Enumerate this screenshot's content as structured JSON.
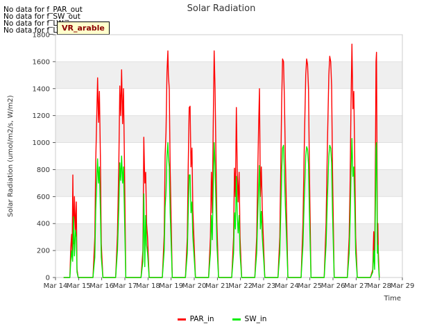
{
  "notes": [
    "No data for f_PAR_out",
    "No data for f_SW_out",
    "No data for f_LW_in",
    "No data for f_LW_out"
  ],
  "badge": "VR_arable",
  "chart_data": {
    "type": "line",
    "title": "Solar Radiation",
    "xlabel": "Time",
    "ylabel": "Solar Radiation (umol/m2/s, W/m2)",
    "xlim": [
      "Mar 14",
      "Mar 29"
    ],
    "ylim": [
      0,
      1800
    ],
    "x_ticks": [
      "Mar 14",
      "Mar 15",
      "Mar 16",
      "Mar 17",
      "Mar 18",
      "Mar 19",
      "Mar 20",
      "Mar 21",
      "Mar 22",
      "Mar 23",
      "Mar 24",
      "Mar 25",
      "Mar 26",
      "Mar 27",
      "Mar 28",
      "Mar 29"
    ],
    "y_ticks": [
      0,
      200,
      400,
      600,
      800,
      1000,
      1200,
      1400,
      1600,
      1800
    ],
    "grid": true,
    "background_bands": true,
    "legend_position": "bottom",
    "series": [
      {
        "name": "PAR_in",
        "color": "#ff0000",
        "points": [
          [
            14.35,
            0
          ],
          [
            14.62,
            0
          ],
          [
            14.66,
            220
          ],
          [
            14.7,
            320
          ],
          [
            14.72,
            180
          ],
          [
            14.75,
            760
          ],
          [
            14.78,
            250
          ],
          [
            14.82,
            600
          ],
          [
            14.86,
            330
          ],
          [
            14.9,
            560
          ],
          [
            14.93,
            60
          ],
          [
            14.98,
            0
          ],
          [
            15.62,
            0
          ],
          [
            15.7,
            300
          ],
          [
            15.74,
            860
          ],
          [
            15.78,
            1160
          ],
          [
            15.82,
            1480
          ],
          [
            15.86,
            1150
          ],
          [
            15.9,
            1380
          ],
          [
            15.94,
            900
          ],
          [
            15.98,
            250
          ],
          [
            16.05,
            0
          ],
          [
            16.6,
            0
          ],
          [
            16.68,
            320
          ],
          [
            16.74,
            850
          ],
          [
            16.78,
            1420
          ],
          [
            16.82,
            1200
          ],
          [
            16.86,
            1540
          ],
          [
            16.9,
            1140
          ],
          [
            16.94,
            1400
          ],
          [
            16.98,
            900
          ],
          [
            17.04,
            0
          ],
          [
            17.7,
            0
          ],
          [
            17.78,
            200
          ],
          [
            17.82,
            1040
          ],
          [
            17.86,
            700
          ],
          [
            17.9,
            780
          ],
          [
            17.94,
            400
          ],
          [
            17.98,
            300
          ],
          [
            18.05,
            0
          ],
          [
            18.62,
            0
          ],
          [
            18.7,
            320
          ],
          [
            18.74,
            900
          ],
          [
            18.78,
            1080
          ],
          [
            18.82,
            1520
          ],
          [
            18.86,
            1680
          ],
          [
            18.88,
            1500
          ],
          [
            18.92,
            1400
          ],
          [
            18.96,
            800
          ],
          [
            19.05,
            0
          ],
          [
            19.62,
            0
          ],
          [
            19.7,
            300
          ],
          [
            19.74,
            820
          ],
          [
            19.78,
            1260
          ],
          [
            19.82,
            1270
          ],
          [
            19.86,
            820
          ],
          [
            19.9,
            960
          ],
          [
            19.94,
            500
          ],
          [
            20.05,
            0
          ],
          [
            20.62,
            0
          ],
          [
            20.7,
            300
          ],
          [
            20.74,
            780
          ],
          [
            20.78,
            480
          ],
          [
            20.82,
            1100
          ],
          [
            20.86,
            1680
          ],
          [
            20.9,
            1400
          ],
          [
            20.94,
            900
          ],
          [
            20.98,
            400
          ],
          [
            21.05,
            0
          ],
          [
            21.62,
            0
          ],
          [
            21.7,
            300
          ],
          [
            21.74,
            810
          ],
          [
            21.78,
            600
          ],
          [
            21.82,
            1260
          ],
          [
            21.86,
            780
          ],
          [
            21.9,
            560
          ],
          [
            21.94,
            780
          ],
          [
            21.98,
            300
          ],
          [
            22.05,
            0
          ],
          [
            22.62,
            0
          ],
          [
            22.7,
            300
          ],
          [
            22.74,
            700
          ],
          [
            22.78,
            1100
          ],
          [
            22.82,
            1400
          ],
          [
            22.86,
            600
          ],
          [
            22.9,
            820
          ],
          [
            22.94,
            520
          ],
          [
            22.98,
            330
          ],
          [
            23.05,
            0
          ],
          [
            23.62,
            0
          ],
          [
            23.7,
            300
          ],
          [
            23.74,
            800
          ],
          [
            23.78,
            1300
          ],
          [
            23.82,
            1620
          ],
          [
            23.86,
            1600
          ],
          [
            23.9,
            1310
          ],
          [
            23.94,
            900
          ],
          [
            24.05,
            0
          ],
          [
            24.62,
            0
          ],
          [
            24.7,
            400
          ],
          [
            24.76,
            1000
          ],
          [
            24.82,
            1500
          ],
          [
            24.86,
            1620
          ],
          [
            24.9,
            1580
          ],
          [
            24.94,
            1400
          ],
          [
            24.98,
            800
          ],
          [
            25.05,
            0
          ],
          [
            25.62,
            0
          ],
          [
            25.7,
            400
          ],
          [
            25.76,
            1000
          ],
          [
            25.82,
            1500
          ],
          [
            25.86,
            1640
          ],
          [
            25.9,
            1600
          ],
          [
            25.94,
            1420
          ],
          [
            25.98,
            800
          ],
          [
            26.05,
            0
          ],
          [
            26.62,
            0
          ],
          [
            26.7,
            300
          ],
          [
            26.74,
            720
          ],
          [
            26.78,
            1300
          ],
          [
            26.82,
            1730
          ],
          [
            26.86,
            1250
          ],
          [
            26.9,
            1380
          ],
          [
            26.94,
            900
          ],
          [
            26.98,
            300
          ],
          [
            27.05,
            0
          ],
          [
            27.62,
            0
          ],
          [
            27.72,
            60
          ],
          [
            27.76,
            340
          ],
          [
            27.8,
            100
          ],
          [
            27.84,
            1000
          ],
          [
            27.86,
            1600
          ],
          [
            27.88,
            1670
          ],
          [
            27.92,
            300
          ],
          [
            27.94,
            400
          ],
          [
            27.96,
            200
          ],
          [
            28.0,
            0
          ]
        ]
      },
      {
        "name": "SW_in",
        "color": "#00ee00",
        "points": [
          [
            14.35,
            0
          ],
          [
            14.62,
            0
          ],
          [
            14.66,
            120
          ],
          [
            14.7,
            200
          ],
          [
            14.74,
            120
          ],
          [
            14.78,
            450
          ],
          [
            14.82,
            160
          ],
          [
            14.86,
            350
          ],
          [
            14.9,
            300
          ],
          [
            14.93,
            40
          ],
          [
            14.98,
            0
          ],
          [
            15.62,
            0
          ],
          [
            15.7,
            150
          ],
          [
            15.74,
            500
          ],
          [
            15.78,
            700
          ],
          [
            15.82,
            880
          ],
          [
            15.86,
            700
          ],
          [
            15.9,
            820
          ],
          [
            15.94,
            500
          ],
          [
            15.98,
            150
          ],
          [
            16.05,
            0
          ],
          [
            16.6,
            0
          ],
          [
            16.68,
            200
          ],
          [
            16.74,
            520
          ],
          [
            16.78,
            850
          ],
          [
            16.82,
            720
          ],
          [
            16.86,
            900
          ],
          [
            16.9,
            700
          ],
          [
            16.94,
            820
          ],
          [
            16.98,
            500
          ],
          [
            17.04,
            0
          ],
          [
            17.7,
            0
          ],
          [
            17.78,
            120
          ],
          [
            17.82,
            620
          ],
          [
            17.86,
            80
          ],
          [
            17.9,
            460
          ],
          [
            17.94,
            240
          ],
          [
            17.98,
            180
          ],
          [
            18.05,
            0
          ],
          [
            18.62,
            0
          ],
          [
            18.7,
            200
          ],
          [
            18.74,
            520
          ],
          [
            18.78,
            640
          ],
          [
            18.82,
            900
          ],
          [
            18.86,
            1000
          ],
          [
            18.88,
            900
          ],
          [
            18.92,
            820
          ],
          [
            18.96,
            480
          ],
          [
            19.05,
            0
          ],
          [
            19.62,
            0
          ],
          [
            19.7,
            180
          ],
          [
            19.74,
            480
          ],
          [
            19.78,
            760
          ],
          [
            19.82,
            760
          ],
          [
            19.86,
            480
          ],
          [
            19.9,
            560
          ],
          [
            19.94,
            300
          ],
          [
            20.05,
            0
          ],
          [
            20.62,
            0
          ],
          [
            20.7,
            180
          ],
          [
            20.74,
            460
          ],
          [
            20.78,
            280
          ],
          [
            20.82,
            660
          ],
          [
            20.86,
            1000
          ],
          [
            20.9,
            830
          ],
          [
            20.94,
            540
          ],
          [
            20.98,
            240
          ],
          [
            21.05,
            0
          ],
          [
            21.62,
            0
          ],
          [
            21.7,
            180
          ],
          [
            21.74,
            480
          ],
          [
            21.78,
            360
          ],
          [
            21.82,
            750
          ],
          [
            21.86,
            460
          ],
          [
            21.9,
            330
          ],
          [
            21.94,
            460
          ],
          [
            21.98,
            180
          ],
          [
            22.05,
            0
          ],
          [
            22.62,
            0
          ],
          [
            22.7,
            180
          ],
          [
            22.74,
            420
          ],
          [
            22.78,
            650
          ],
          [
            22.82,
            830
          ],
          [
            22.86,
            360
          ],
          [
            22.9,
            490
          ],
          [
            22.94,
            310
          ],
          [
            22.98,
            200
          ],
          [
            23.05,
            0
          ],
          [
            23.62,
            0
          ],
          [
            23.7,
            180
          ],
          [
            23.74,
            480
          ],
          [
            23.78,
            780
          ],
          [
            23.82,
            960
          ],
          [
            23.86,
            980
          ],
          [
            23.9,
            780
          ],
          [
            23.94,
            540
          ],
          [
            24.05,
            0
          ],
          [
            24.62,
            0
          ],
          [
            24.7,
            240
          ],
          [
            24.76,
            600
          ],
          [
            24.82,
            900
          ],
          [
            24.86,
            970
          ],
          [
            24.9,
            950
          ],
          [
            24.94,
            840
          ],
          [
            24.98,
            480
          ],
          [
            25.05,
            0
          ],
          [
            25.62,
            0
          ],
          [
            25.7,
            240
          ],
          [
            25.76,
            600
          ],
          [
            25.82,
            900
          ],
          [
            25.86,
            980
          ],
          [
            25.9,
            960
          ],
          [
            25.94,
            850
          ],
          [
            25.98,
            480
          ],
          [
            26.05,
            0
          ],
          [
            26.62,
            0
          ],
          [
            26.7,
            180
          ],
          [
            26.74,
            430
          ],
          [
            26.78,
            780
          ],
          [
            26.82,
            1030
          ],
          [
            26.86,
            750
          ],
          [
            26.9,
            820
          ],
          [
            26.94,
            540
          ],
          [
            26.98,
            180
          ],
          [
            27.05,
            0
          ],
          [
            27.62,
            0
          ],
          [
            27.72,
            40
          ],
          [
            27.76,
            200
          ],
          [
            27.8,
            60
          ],
          [
            27.84,
            600
          ],
          [
            27.86,
            960
          ],
          [
            27.88,
            1000
          ],
          [
            27.92,
            180
          ],
          [
            27.94,
            240
          ],
          [
            27.96,
            120
          ],
          [
            28.0,
            0
          ]
        ]
      }
    ]
  }
}
